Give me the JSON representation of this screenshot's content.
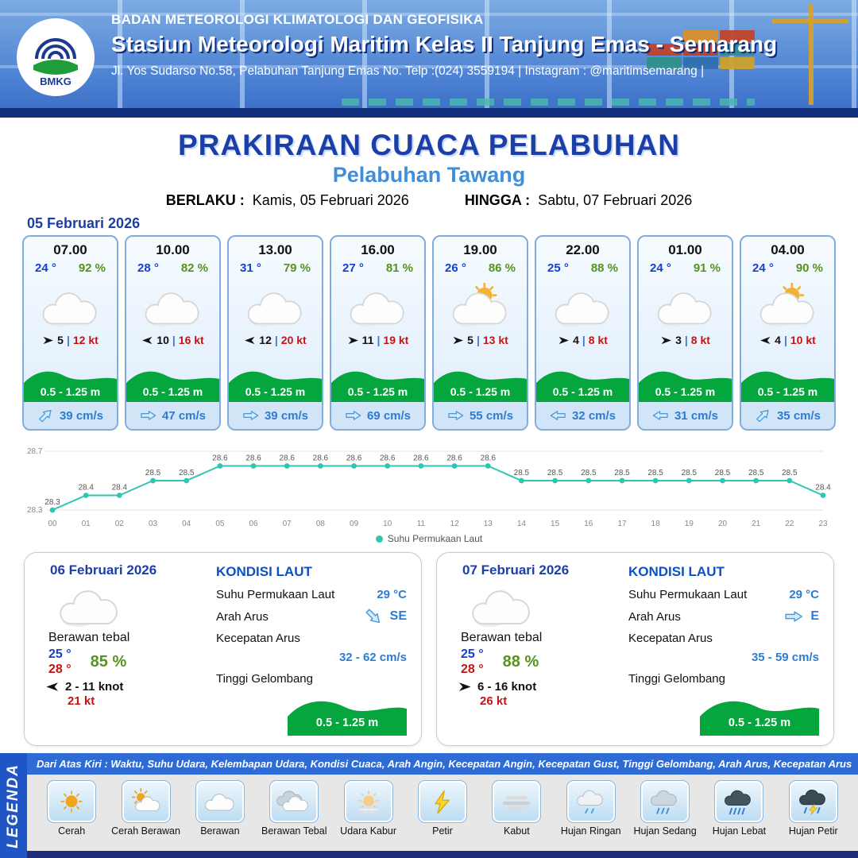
{
  "colors": {
    "accent_blue": "#1c3ea8",
    "subtitle_blue": "#3f8ed8",
    "wave_green": "#06a63e",
    "humidity_green": "#55931d",
    "gust_red": "#c41414",
    "temp_blue": "#1540cc",
    "current_blue": "#2e7bd0",
    "chart_teal": "#2fc5b3"
  },
  "header": {
    "logo_label": "BMKG",
    "agency": "BADAN METEOROLOGI KLIMATOLOGI DAN GEOFISIKA",
    "station": "Stasiun Meteorologi Maritim Kelas II Tanjung Emas - Semarang",
    "address": "Jl. Yos Sudarso No.58, Pelabuhan Tanjung Emas No. Telp :(024) 3559194 | Instagram : @maritimsemarang |"
  },
  "title": {
    "main": "PRAKIRAAN CUACA PELABUHAN",
    "subtitle": "Pelabuhan Tawang",
    "valid_label": "BERLAKU :",
    "valid_value": "Kamis, 05 Februari 2026",
    "until_label": "HINGGA :",
    "until_value": "Sabtu, 07 Februari 2026"
  },
  "forecast_date": "05 Februari 2026",
  "labels": {
    "wind_sep": "|"
  },
  "hourly": [
    {
      "time": "07.00",
      "temp": "24 °",
      "humidity": "92 %",
      "icon": "cloud",
      "wind_dir": "right",
      "wind": "5",
      "gust": "12 kt",
      "wave": "0.5 - 1.25 m",
      "current_dir": "ne",
      "current": "39 cm/s"
    },
    {
      "time": "10.00",
      "temp": "28 °",
      "humidity": "82 %",
      "icon": "cloud",
      "wind_dir": "left",
      "wind": "10",
      "gust": "16 kt",
      "wave": "0.5 - 1.25 m",
      "current_dir": "e",
      "current": "47 cm/s"
    },
    {
      "time": "13.00",
      "temp": "31 °",
      "humidity": "79 %",
      "icon": "cloud",
      "wind_dir": "left",
      "wind": "12",
      "gust": "20 kt",
      "wave": "0.5 - 1.25 m",
      "current_dir": "e",
      "current": "39 cm/s"
    },
    {
      "time": "16.00",
      "temp": "27 °",
      "humidity": "81 %",
      "icon": "cloud",
      "wind_dir": "right",
      "wind": "11",
      "gust": "19 kt",
      "wave": "0.5 - 1.25 m",
      "current_dir": "e",
      "current": "69 cm/s"
    },
    {
      "time": "19.00",
      "temp": "26 °",
      "humidity": "86 %",
      "icon": "sun-cloud",
      "wind_dir": "right",
      "wind": "5",
      "gust": "13 kt",
      "wave": "0.5 - 1.25 m",
      "current_dir": "e",
      "current": "55 cm/s"
    },
    {
      "time": "22.00",
      "temp": "25 °",
      "humidity": "88 %",
      "icon": "cloud",
      "wind_dir": "right",
      "wind": "4",
      "gust": "8 kt",
      "wave": "0.5 - 1.25 m",
      "current_dir": "w",
      "current": "32 cm/s"
    },
    {
      "time": "01.00",
      "temp": "24 °",
      "humidity": "91 %",
      "icon": "cloud",
      "wind_dir": "right",
      "wind": "3",
      "gust": "8 kt",
      "wave": "0.5 - 1.25 m",
      "current_dir": "w",
      "current": "31 cm/s"
    },
    {
      "time": "04.00",
      "temp": "24 °",
      "humidity": "90 %",
      "icon": "sun-cloud",
      "wind_dir": "left",
      "wind": "4",
      "gust": "10 kt",
      "wave": "0.5 - 1.25 m",
      "current_dir": "ne",
      "current": "35 cm/s"
    }
  ],
  "chart_data": {
    "type": "line",
    "series_name": "Suhu Permukaan Laut",
    "x": [
      "00",
      "01",
      "02",
      "03",
      "04",
      "05",
      "06",
      "07",
      "08",
      "09",
      "10",
      "11",
      "12",
      "13",
      "14",
      "15",
      "16",
      "17",
      "18",
      "19",
      "20",
      "21",
      "22",
      "23"
    ],
    "values": [
      28.3,
      28.4,
      28.4,
      28.5,
      28.5,
      28.6,
      28.6,
      28.6,
      28.6,
      28.6,
      28.6,
      28.6,
      28.6,
      28.6,
      28.5,
      28.5,
      28.5,
      28.5,
      28.5,
      28.5,
      28.5,
      28.5,
      28.5,
      28.4
    ],
    "ylim": [
      28.3,
      28.7
    ],
    "line_color": "#2fc5b3",
    "grid": true,
    "legend_position": "bottom"
  },
  "daily_labels": {
    "kondisi_laut": "KONDISI LAUT",
    "sst": "Suhu Permukaan Laut",
    "arah_arus": "Arah Arus",
    "kecepatan_arus": "Kecepatan Arus",
    "tinggi_gelombang": "Tinggi Gelombang"
  },
  "daily": [
    {
      "date": "06 Februari 2026",
      "condition": "Berawan tebal",
      "icon": "cloud",
      "temp_min": "25 °",
      "temp_max": "28 °",
      "humidity": "85 %",
      "wind_dir": "left",
      "wind": "2 - 11 knot",
      "gust": "21 kt",
      "sea": {
        "sst": "29 °C",
        "current_dir": "se",
        "current_dir_label": "SE",
        "current_speed": "32 - 62 cm/s",
        "wave": "0.5 - 1.25 m"
      }
    },
    {
      "date": "07 Februari 2026",
      "condition": "Berawan tebal",
      "icon": "cloud",
      "temp_min": "25 °",
      "temp_max": "28 °",
      "humidity": "88 %",
      "wind_dir": "right",
      "wind": "6 - 16 knot",
      "gust": "26 kt",
      "sea": {
        "sst": "29 °C",
        "current_dir": "e",
        "current_dir_label": "E",
        "current_speed": "35 - 59 cm/s",
        "wave": "0.5 - 1.25 m"
      }
    }
  ],
  "legend": {
    "side_label": "LEGENDA",
    "note": "Dari Atas Kiri : Waktu, Suhu Udara, Kelembapan Udara, Kondisi Cuaca, Arah Angin, Kecepatan Angin, Kecepatan Gust, Tinggi Gelombang, Arah Arus, Kecepatan Arus",
    "items": [
      {
        "label": "Cerah",
        "icon": "cerah"
      },
      {
        "label": "Cerah Berawan",
        "icon": "cerah-berawan"
      },
      {
        "label": "Berawan",
        "icon": "berawan"
      },
      {
        "label": "Berawan Tebal",
        "icon": "berawan-tebal"
      },
      {
        "label": "Udara Kabur",
        "icon": "udara-kabur"
      },
      {
        "label": "Petir",
        "icon": "petir"
      },
      {
        "label": "Kabut",
        "icon": "kabut"
      },
      {
        "label": "Hujan Ringan",
        "icon": "hujan-ringan"
      },
      {
        "label": "Hujan Sedang",
        "icon": "hujan-sedang"
      },
      {
        "label": "Hujan Lebat",
        "icon": "hujan-lebat"
      },
      {
        "label": "Hujan Petir",
        "icon": "hujan-petir"
      }
    ]
  }
}
